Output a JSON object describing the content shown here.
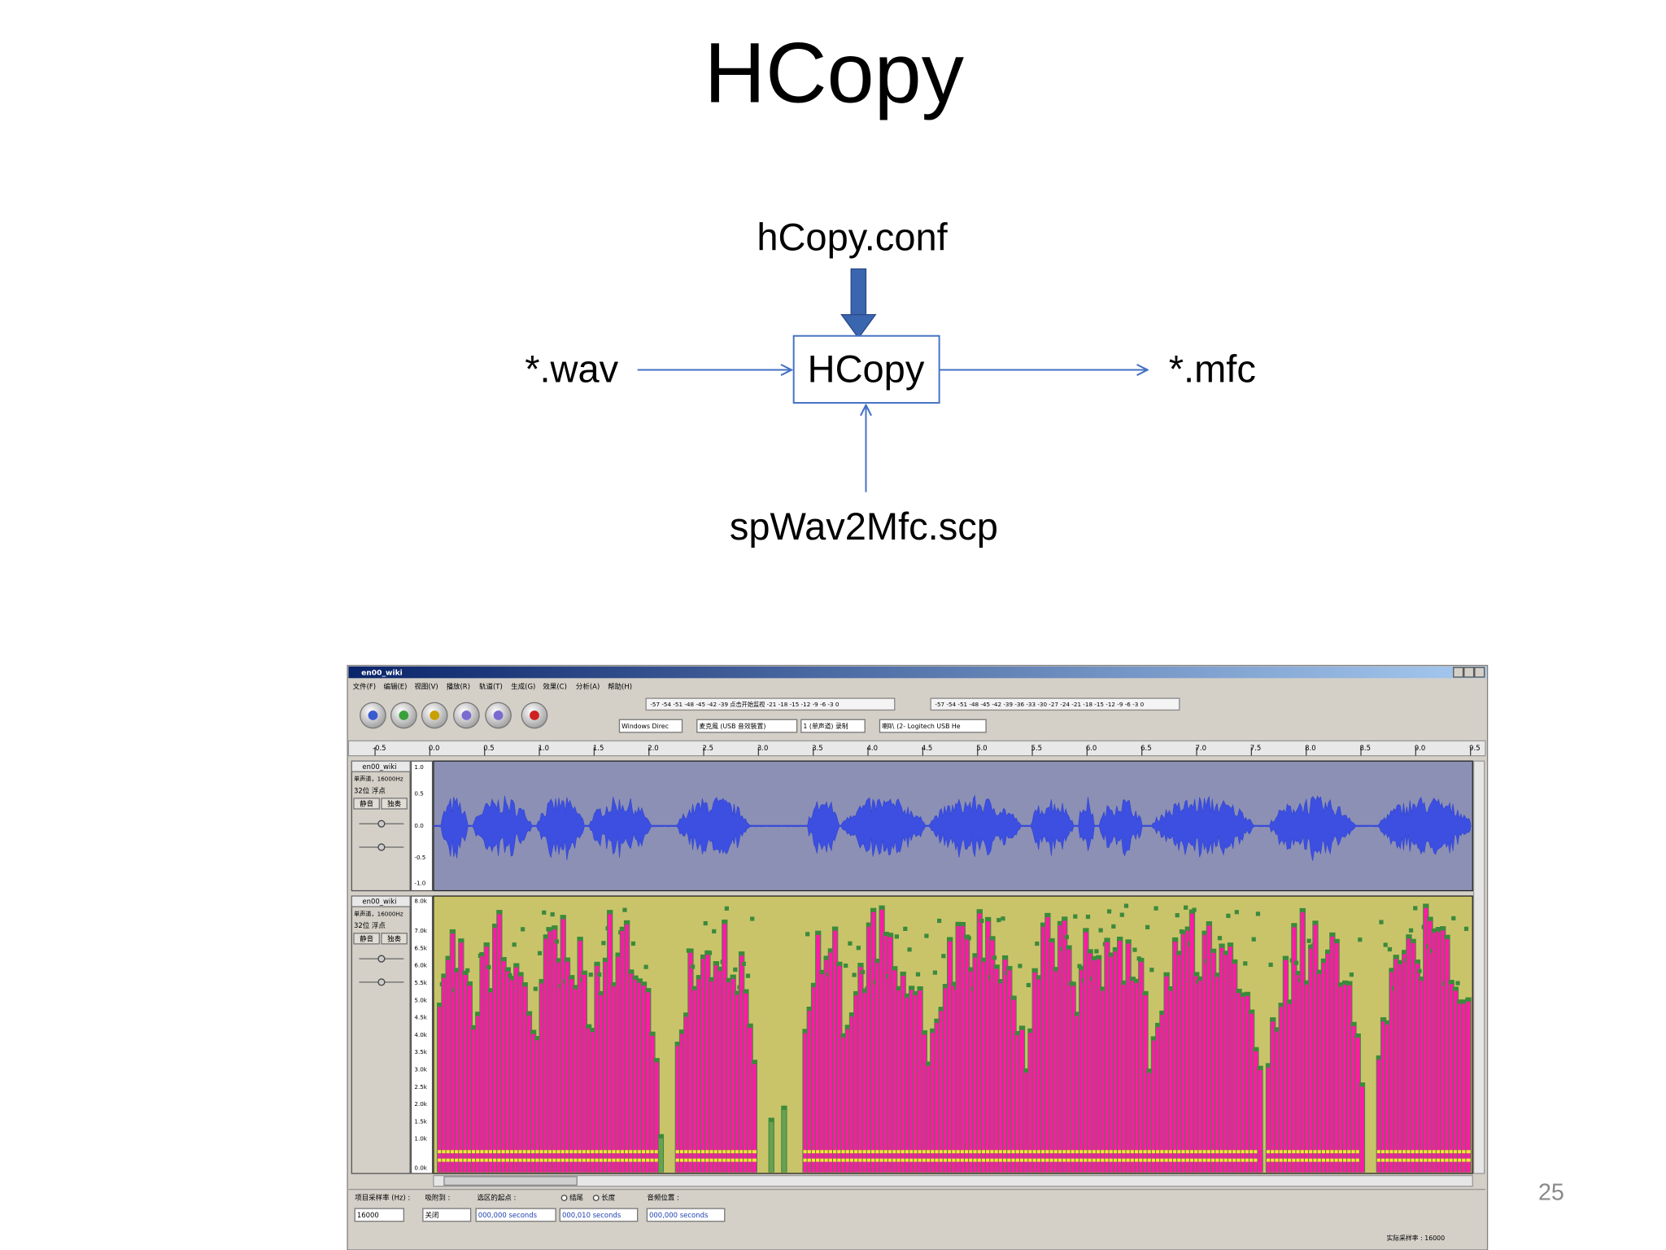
{
  "slide": {
    "title": "HCopy",
    "page_number": "25"
  },
  "diagram": {
    "nodes": [
      {
        "label": "hCopy.conf"
      },
      {
        "label": "*.wav"
      },
      {
        "label": "HCopy"
      },
      {
        "label": "*.mfc"
      },
      {
        "label": "spWav2Mfc.scp"
      }
    ]
  },
  "screenshot": {
    "window_title": "en00_wiki",
    "menu": [
      "文件(F)",
      "编辑(E)",
      "视图(V)",
      "播放(R)",
      "轨道(T)",
      "生成(G)",
      "效果(C)",
      "分析(A)",
      "帮助(H)"
    ],
    "meters": {
      "record": "-57 -54 -51 -48 -45 -42 -39 点击开始监视 -21 -18 -15 -12 -9 -6 -3 0",
      "playback": "-57 -54 -51 -48 -45 -42 -39 -36 -33 -30 -27 -24 -21 -18 -15 -12 -9 -6 -3 0"
    },
    "devices": [
      "Windows Direc",
      "麦克風 (USB 音效裝置)",
      "1 (单声道) 录制",
      "喇叭 (2- Logitech USB He"
    ],
    "timeline": [
      "-0.5",
      "0.0",
      "0.5",
      "1.0",
      "1.5",
      "2.0",
      "2.5",
      "3.0",
      "3.5",
      "4.0",
      "4.5",
      "5.0",
      "5.5",
      "6.0",
      "6.5",
      "7.0",
      "7.5",
      "8.0",
      "8.5",
      "9.0",
      "9.5"
    ],
    "tracks": [
      {
        "name": "en00_wiki",
        "info": "单声道，16000Hz",
        "format": "32位 浮点",
        "mute": "静音",
        "solo": "独奏",
        "scale": [
          "1.0",
          "0.5",
          "0.0",
          "-0.5",
          "-1.0"
        ]
      },
      {
        "name": "en00_wiki",
        "info": "单声道，16000Hz",
        "format": "32位 浮点",
        "mute": "静音",
        "solo": "独奏",
        "scale": [
          "8.0k",
          "7.0k",
          "6.5k",
          "6.0k",
          "5.5k",
          "5.0k",
          "4.5k",
          "4.0k",
          "3.5k",
          "3.0k",
          "2.5k",
          "2.0k",
          "1.5k",
          "1.0k",
          "0.0k"
        ]
      }
    ],
    "status": {
      "rate_label": "项目采样率 (Hz) :",
      "rate": "16000",
      "snap_label": "吸附到 :",
      "snap": "关闭",
      "selection_label": "选区的起点 :",
      "end": "结尾",
      "length": "长度",
      "position_label": "音频位置 :",
      "selection_start": "000,000 seconds",
      "selection_end": "000,010 seconds",
      "position": "000,000 seconds",
      "actual_rate": "实际采样率 : 16000"
    }
  }
}
